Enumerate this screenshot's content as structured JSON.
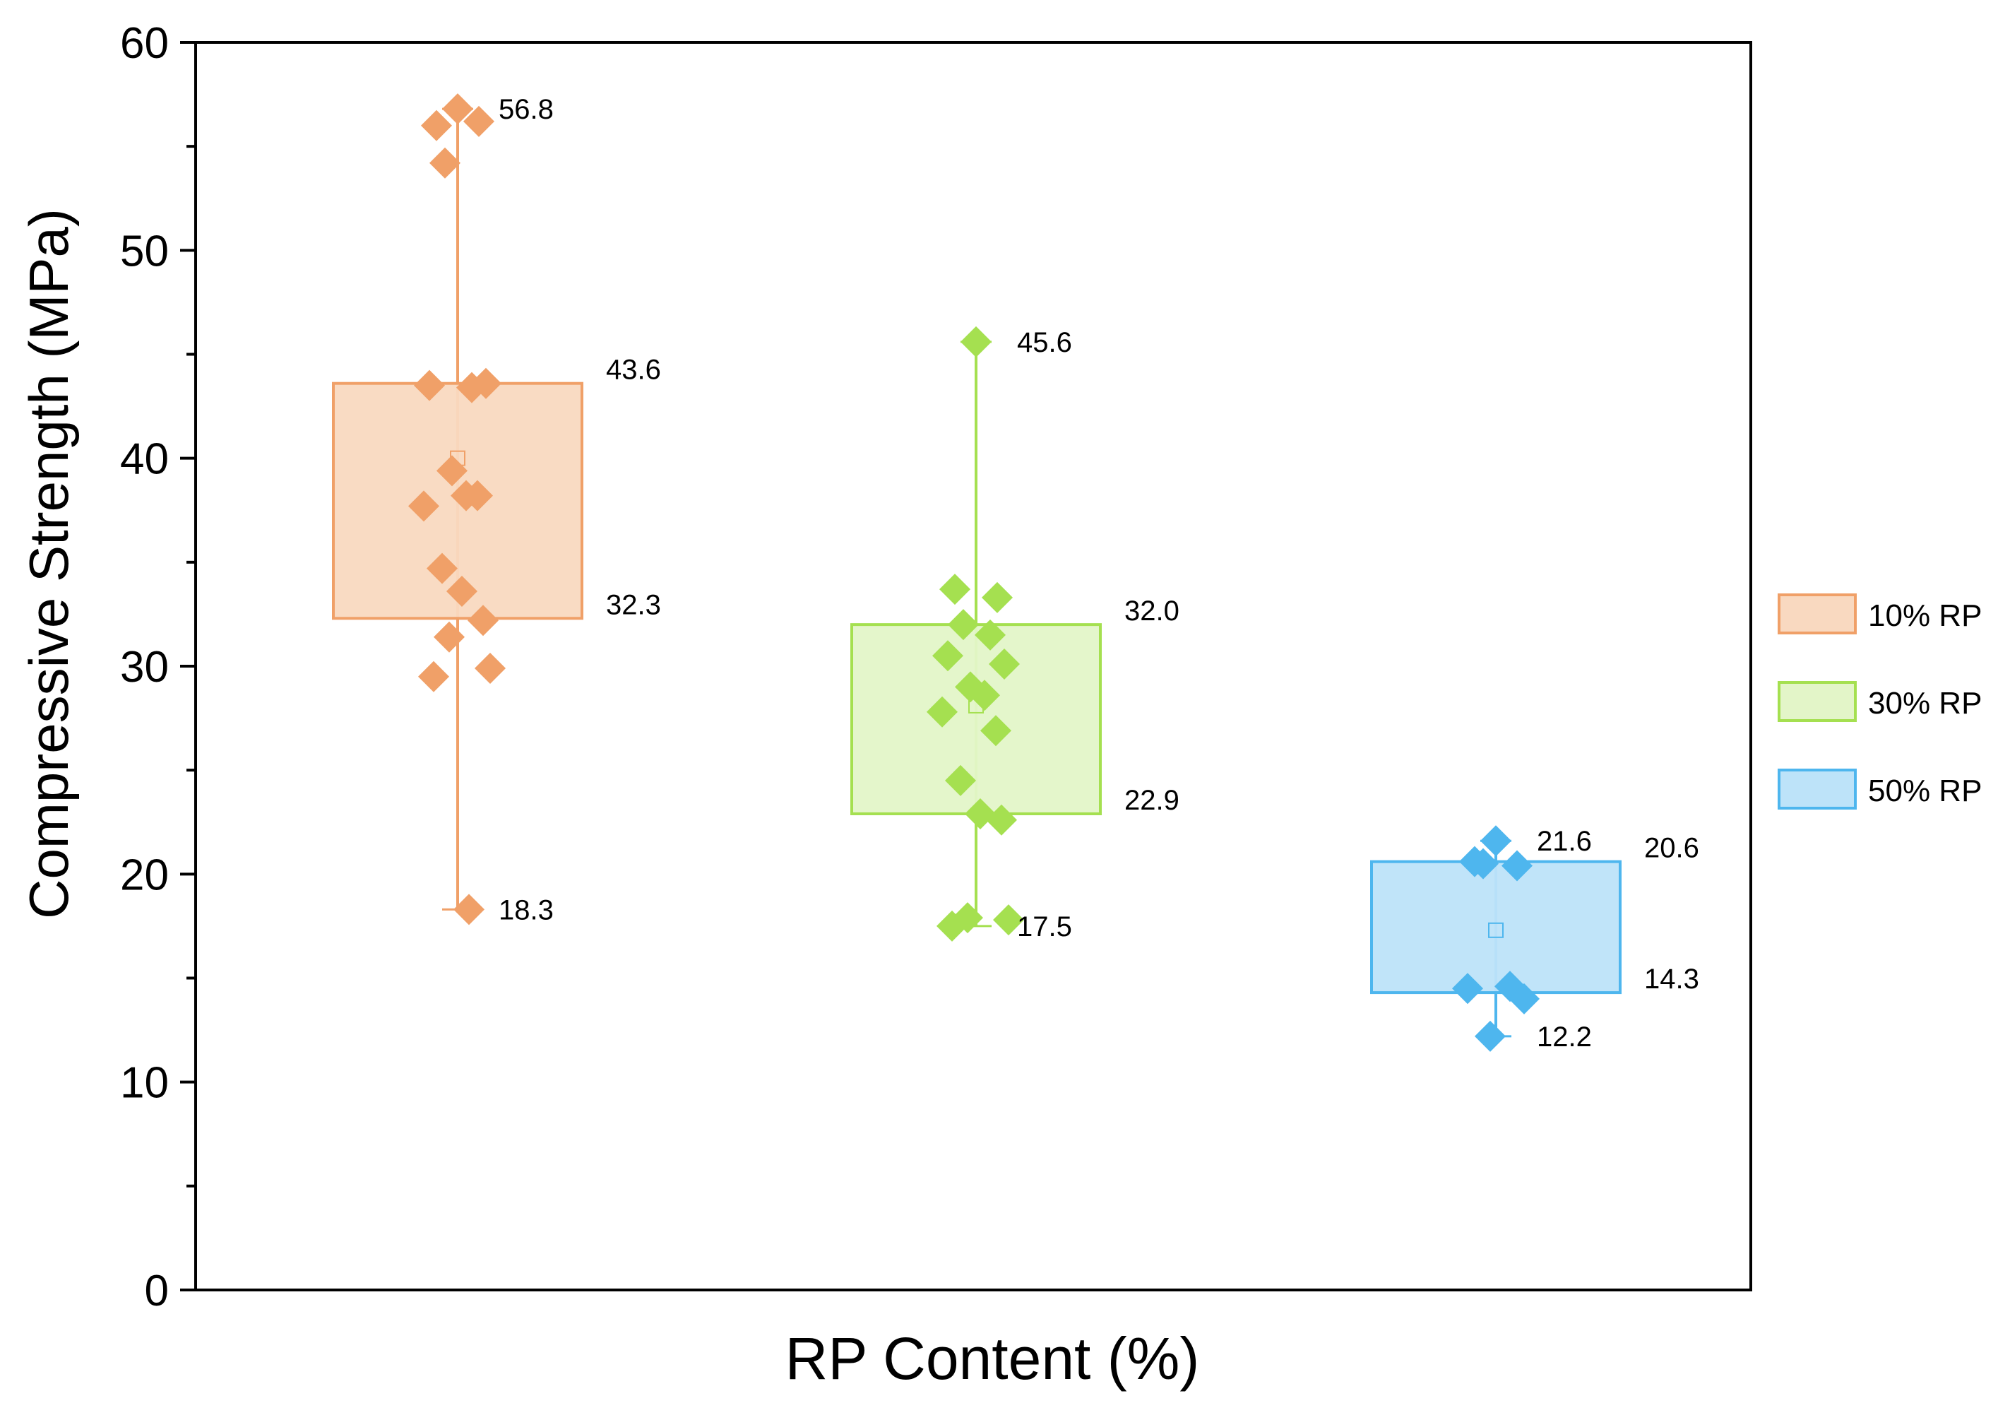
{
  "chart_data": {
    "type": "box",
    "title": "",
    "xlabel": "RP Content (%)",
    "ylabel": "Compressive Strength (MPa)",
    "ylim": [
      0,
      60
    ],
    "yticks": [
      0,
      10,
      20,
      30,
      40,
      50,
      60
    ],
    "ytick_labels": [
      "0",
      "10",
      "20",
      "30",
      "40",
      "50",
      "60"
    ],
    "legend_position": "right",
    "series": [
      {
        "name": "10% RP",
        "color": "#F0A068",
        "box_fill": "#F9D9C0",
        "min": 18.3,
        "q1": 32.3,
        "mean": 40.0,
        "q3": 43.6,
        "max": 56.8,
        "labels": {
          "min": "18.3",
          "q1": "32.3",
          "q3": "43.6",
          "max": "56.8"
        },
        "points": [
          56.8,
          56.0,
          56.2,
          54.2,
          43.4,
          43.5,
          43.6,
          39.4,
          38.2,
          37.7,
          38.2,
          34.7,
          33.6,
          32.2,
          31.4,
          29.9,
          29.5,
          18.3
        ]
      },
      {
        "name": "30% RP",
        "color": "#A5E050",
        "box_fill": "#E3F5C8",
        "min": 17.5,
        "q1": 22.9,
        "mean": 28.1,
        "q3": 32.0,
        "max": 45.6,
        "labels": {
          "min": "17.5",
          "q1": "22.9",
          "q3": "32.0",
          "max": "45.6"
        },
        "points": [
          45.6,
          33.7,
          33.3,
          32.0,
          31.5,
          30.5,
          30.1,
          29.0,
          28.6,
          27.8,
          26.9,
          24.5,
          22.9,
          22.6,
          17.9,
          17.8,
          17.5
        ]
      },
      {
        "name": "50% RP",
        "color": "#4EB6EE",
        "box_fill": "#BDE3F9",
        "min": 12.2,
        "q1": 14.3,
        "mean": 17.3,
        "q3": 20.6,
        "max": 21.6,
        "labels": {
          "min": "12.2",
          "q1": "14.3",
          "q3": "20.6",
          "max": "21.6"
        },
        "points": [
          21.6,
          20.6,
          20.4,
          20.5,
          14.6,
          14.5,
          14.0,
          12.2
        ]
      }
    ]
  }
}
